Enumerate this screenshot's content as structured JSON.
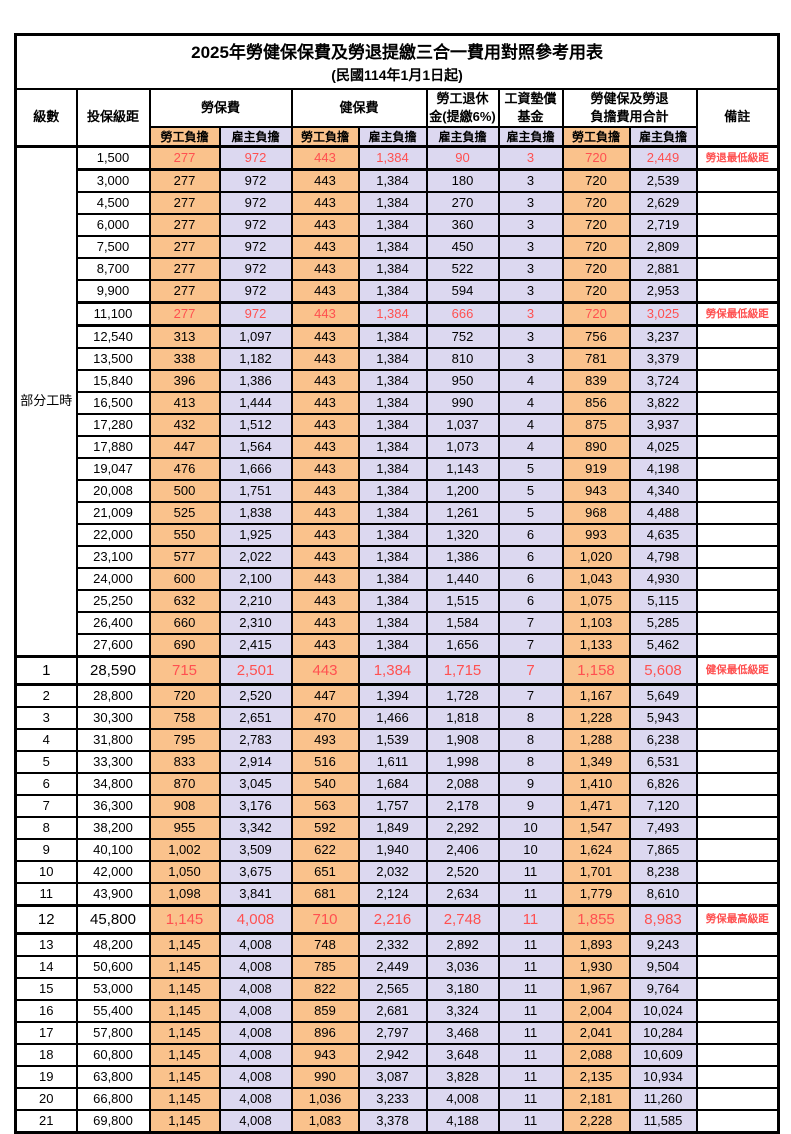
{
  "title": "2025年勞健保保費及勞退提繳三合一費用對照參考用表",
  "subtitle": "(民國114年1月1日起)",
  "header": {
    "level": "級數",
    "bracket": "投保級距",
    "labor_insurance": "勞保費",
    "health_insurance": "健保費",
    "pension_line1": "勞工退休",
    "pension_line2": "金(提繳6%)",
    "fund_line1": "工資墊償",
    "fund_line2": "基金",
    "total_line1": "勞健保及勞退",
    "total_line2": "負擔費用合計",
    "remark": "備註",
    "employee": "勞工負擔",
    "employer": "雇主負擔"
  },
  "part_time_label": "部分工時",
  "colors": {
    "employee_bg": "#FAC28C",
    "employer_bg": "#DCD8F0",
    "highlight_text": "#FF5050",
    "border": "#000000"
  },
  "rows": [
    {
      "part_time_span": 23,
      "bracket": "1,500",
      "values": [
        "277",
        "972",
        "443",
        "1,384",
        "90",
        "3",
        "720",
        "2,449"
      ],
      "remark": "勞退最低級距",
      "hl": true
    },
    {
      "bracket": "3,000",
      "values": [
        "277",
        "972",
        "443",
        "1,384",
        "180",
        "3",
        "720",
        "2,539"
      ],
      "remark": ""
    },
    {
      "bracket": "4,500",
      "values": [
        "277",
        "972",
        "443",
        "1,384",
        "270",
        "3",
        "720",
        "2,629"
      ],
      "remark": ""
    },
    {
      "bracket": "6,000",
      "values": [
        "277",
        "972",
        "443",
        "1,384",
        "360",
        "3",
        "720",
        "2,719"
      ],
      "remark": ""
    },
    {
      "bracket": "7,500",
      "values": [
        "277",
        "972",
        "443",
        "1,384",
        "450",
        "3",
        "720",
        "2,809"
      ],
      "remark": ""
    },
    {
      "bracket": "8,700",
      "values": [
        "277",
        "972",
        "443",
        "1,384",
        "522",
        "3",
        "720",
        "2,881"
      ],
      "remark": ""
    },
    {
      "bracket": "9,900",
      "values": [
        "277",
        "972",
        "443",
        "1,384",
        "594",
        "3",
        "720",
        "2,953"
      ],
      "remark": ""
    },
    {
      "bracket": "11,100",
      "values": [
        "277",
        "972",
        "443",
        "1,384",
        "666",
        "3",
        "720",
        "3,025"
      ],
      "remark": "勞保最低級距",
      "hl": true
    },
    {
      "bracket": "12,540",
      "values": [
        "313",
        "1,097",
        "443",
        "1,384",
        "752",
        "3",
        "756",
        "3,237"
      ],
      "remark": ""
    },
    {
      "bracket": "13,500",
      "values": [
        "338",
        "1,182",
        "443",
        "1,384",
        "810",
        "3",
        "781",
        "3,379"
      ],
      "remark": ""
    },
    {
      "bracket": "15,840",
      "values": [
        "396",
        "1,386",
        "443",
        "1,384",
        "950",
        "4",
        "839",
        "3,724"
      ],
      "remark": ""
    },
    {
      "bracket": "16,500",
      "values": [
        "413",
        "1,444",
        "443",
        "1,384",
        "990",
        "4",
        "856",
        "3,822"
      ],
      "remark": ""
    },
    {
      "bracket": "17,280",
      "values": [
        "432",
        "1,512",
        "443",
        "1,384",
        "1,037",
        "4",
        "875",
        "3,937"
      ],
      "remark": ""
    },
    {
      "bracket": "17,880",
      "values": [
        "447",
        "1,564",
        "443",
        "1,384",
        "1,073",
        "4",
        "890",
        "4,025"
      ],
      "remark": ""
    },
    {
      "bracket": "19,047",
      "values": [
        "476",
        "1,666",
        "443",
        "1,384",
        "1,143",
        "5",
        "919",
        "4,198"
      ],
      "remark": ""
    },
    {
      "bracket": "20,008",
      "values": [
        "500",
        "1,751",
        "443",
        "1,384",
        "1,200",
        "5",
        "943",
        "4,340"
      ],
      "remark": ""
    },
    {
      "bracket": "21,009",
      "values": [
        "525",
        "1,838",
        "443",
        "1,384",
        "1,261",
        "5",
        "968",
        "4,488"
      ],
      "remark": ""
    },
    {
      "bracket": "22,000",
      "values": [
        "550",
        "1,925",
        "443",
        "1,384",
        "1,320",
        "6",
        "993",
        "4,635"
      ],
      "remark": ""
    },
    {
      "bracket": "23,100",
      "values": [
        "577",
        "2,022",
        "443",
        "1,384",
        "1,386",
        "6",
        "1,020",
        "4,798"
      ],
      "remark": ""
    },
    {
      "bracket": "24,000",
      "values": [
        "600",
        "2,100",
        "443",
        "1,384",
        "1,440",
        "6",
        "1,043",
        "4,930"
      ],
      "remark": ""
    },
    {
      "bracket": "25,250",
      "values": [
        "632",
        "2,210",
        "443",
        "1,384",
        "1,515",
        "6",
        "1,075",
        "5,115"
      ],
      "remark": ""
    },
    {
      "bracket": "26,400",
      "values": [
        "660",
        "2,310",
        "443",
        "1,384",
        "1,584",
        "7",
        "1,103",
        "5,285"
      ],
      "remark": ""
    },
    {
      "bracket": "27,600",
      "values": [
        "690",
        "2,415",
        "443",
        "1,384",
        "1,656",
        "7",
        "1,133",
        "5,462"
      ],
      "remark": ""
    },
    {
      "level": "1",
      "bracket": "28,590",
      "values": [
        "715",
        "2,501",
        "443",
        "1,384",
        "1,715",
        "7",
        "1,158",
        "5,608"
      ],
      "remark": "健保最低級距",
      "hl": true,
      "big": true
    },
    {
      "level": "2",
      "bracket": "28,800",
      "values": [
        "720",
        "2,520",
        "447",
        "1,394",
        "1,728",
        "7",
        "1,167",
        "5,649"
      ],
      "remark": ""
    },
    {
      "level": "3",
      "bracket": "30,300",
      "values": [
        "758",
        "2,651",
        "470",
        "1,466",
        "1,818",
        "8",
        "1,228",
        "5,943"
      ],
      "remark": ""
    },
    {
      "level": "4",
      "bracket": "31,800",
      "values": [
        "795",
        "2,783",
        "493",
        "1,539",
        "1,908",
        "8",
        "1,288",
        "6,238"
      ],
      "remark": ""
    },
    {
      "level": "5",
      "bracket": "33,300",
      "values": [
        "833",
        "2,914",
        "516",
        "1,611",
        "1,998",
        "8",
        "1,349",
        "6,531"
      ],
      "remark": ""
    },
    {
      "level": "6",
      "bracket": "34,800",
      "values": [
        "870",
        "3,045",
        "540",
        "1,684",
        "2,088",
        "9",
        "1,410",
        "6,826"
      ],
      "remark": ""
    },
    {
      "level": "7",
      "bracket": "36,300",
      "values": [
        "908",
        "3,176",
        "563",
        "1,757",
        "2,178",
        "9",
        "1,471",
        "7,120"
      ],
      "remark": ""
    },
    {
      "level": "8",
      "bracket": "38,200",
      "values": [
        "955",
        "3,342",
        "592",
        "1,849",
        "2,292",
        "10",
        "1,547",
        "7,493"
      ],
      "remark": ""
    },
    {
      "level": "9",
      "bracket": "40,100",
      "values": [
        "1,002",
        "3,509",
        "622",
        "1,940",
        "2,406",
        "10",
        "1,624",
        "7,865"
      ],
      "remark": ""
    },
    {
      "level": "10",
      "bracket": "42,000",
      "values": [
        "1,050",
        "3,675",
        "651",
        "2,032",
        "2,520",
        "11",
        "1,701",
        "8,238"
      ],
      "remark": ""
    },
    {
      "level": "11",
      "bracket": "43,900",
      "values": [
        "1,098",
        "3,841",
        "681",
        "2,124",
        "2,634",
        "11",
        "1,779",
        "8,610"
      ],
      "remark": ""
    },
    {
      "level": "12",
      "bracket": "45,800",
      "values": [
        "1,145",
        "4,008",
        "710",
        "2,216",
        "2,748",
        "11",
        "1,855",
        "8,983"
      ],
      "remark": "勞保最高級距",
      "hl": true,
      "big": true
    },
    {
      "level": "13",
      "bracket": "48,200",
      "values": [
        "1,145",
        "4,008",
        "748",
        "2,332",
        "2,892",
        "11",
        "1,893",
        "9,243"
      ],
      "remark": ""
    },
    {
      "level": "14",
      "bracket": "50,600",
      "values": [
        "1,145",
        "4,008",
        "785",
        "2,449",
        "3,036",
        "11",
        "1,930",
        "9,504"
      ],
      "remark": ""
    },
    {
      "level": "15",
      "bracket": "53,000",
      "values": [
        "1,145",
        "4,008",
        "822",
        "2,565",
        "3,180",
        "11",
        "1,967",
        "9,764"
      ],
      "remark": ""
    },
    {
      "level": "16",
      "bracket": "55,400",
      "values": [
        "1,145",
        "4,008",
        "859",
        "2,681",
        "3,324",
        "11",
        "2,004",
        "10,024"
      ],
      "remark": ""
    },
    {
      "level": "17",
      "bracket": "57,800",
      "values": [
        "1,145",
        "4,008",
        "896",
        "2,797",
        "3,468",
        "11",
        "2,041",
        "10,284"
      ],
      "remark": ""
    },
    {
      "level": "18",
      "bracket": "60,800",
      "values": [
        "1,145",
        "4,008",
        "943",
        "2,942",
        "3,648",
        "11",
        "2,088",
        "10,609"
      ],
      "remark": ""
    },
    {
      "level": "19",
      "bracket": "63,800",
      "values": [
        "1,145",
        "4,008",
        "990",
        "3,087",
        "3,828",
        "11",
        "2,135",
        "10,934"
      ],
      "remark": ""
    },
    {
      "level": "20",
      "bracket": "66,800",
      "values": [
        "1,145",
        "4,008",
        "1,036",
        "3,233",
        "4,008",
        "11",
        "2,181",
        "11,260"
      ],
      "remark": ""
    },
    {
      "level": "21",
      "bracket": "69,800",
      "values": [
        "1,145",
        "4,008",
        "1,083",
        "3,378",
        "4,188",
        "11",
        "2,228",
        "11,585"
      ],
      "remark": ""
    }
  ]
}
